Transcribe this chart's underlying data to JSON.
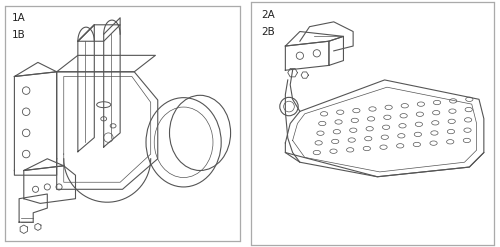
{
  "bg_color": "#ffffff",
  "border_color": "#888888",
  "line_color": "#555555",
  "label_color": "#222222",
  "fig_width": 5.0,
  "fig_height": 2.47,
  "dpi": 100,
  "panel1_labels": [
    "1A",
    "1B"
  ],
  "panel2_labels": [
    "2A",
    "2B"
  ],
  "label_fontsize": 7.5
}
